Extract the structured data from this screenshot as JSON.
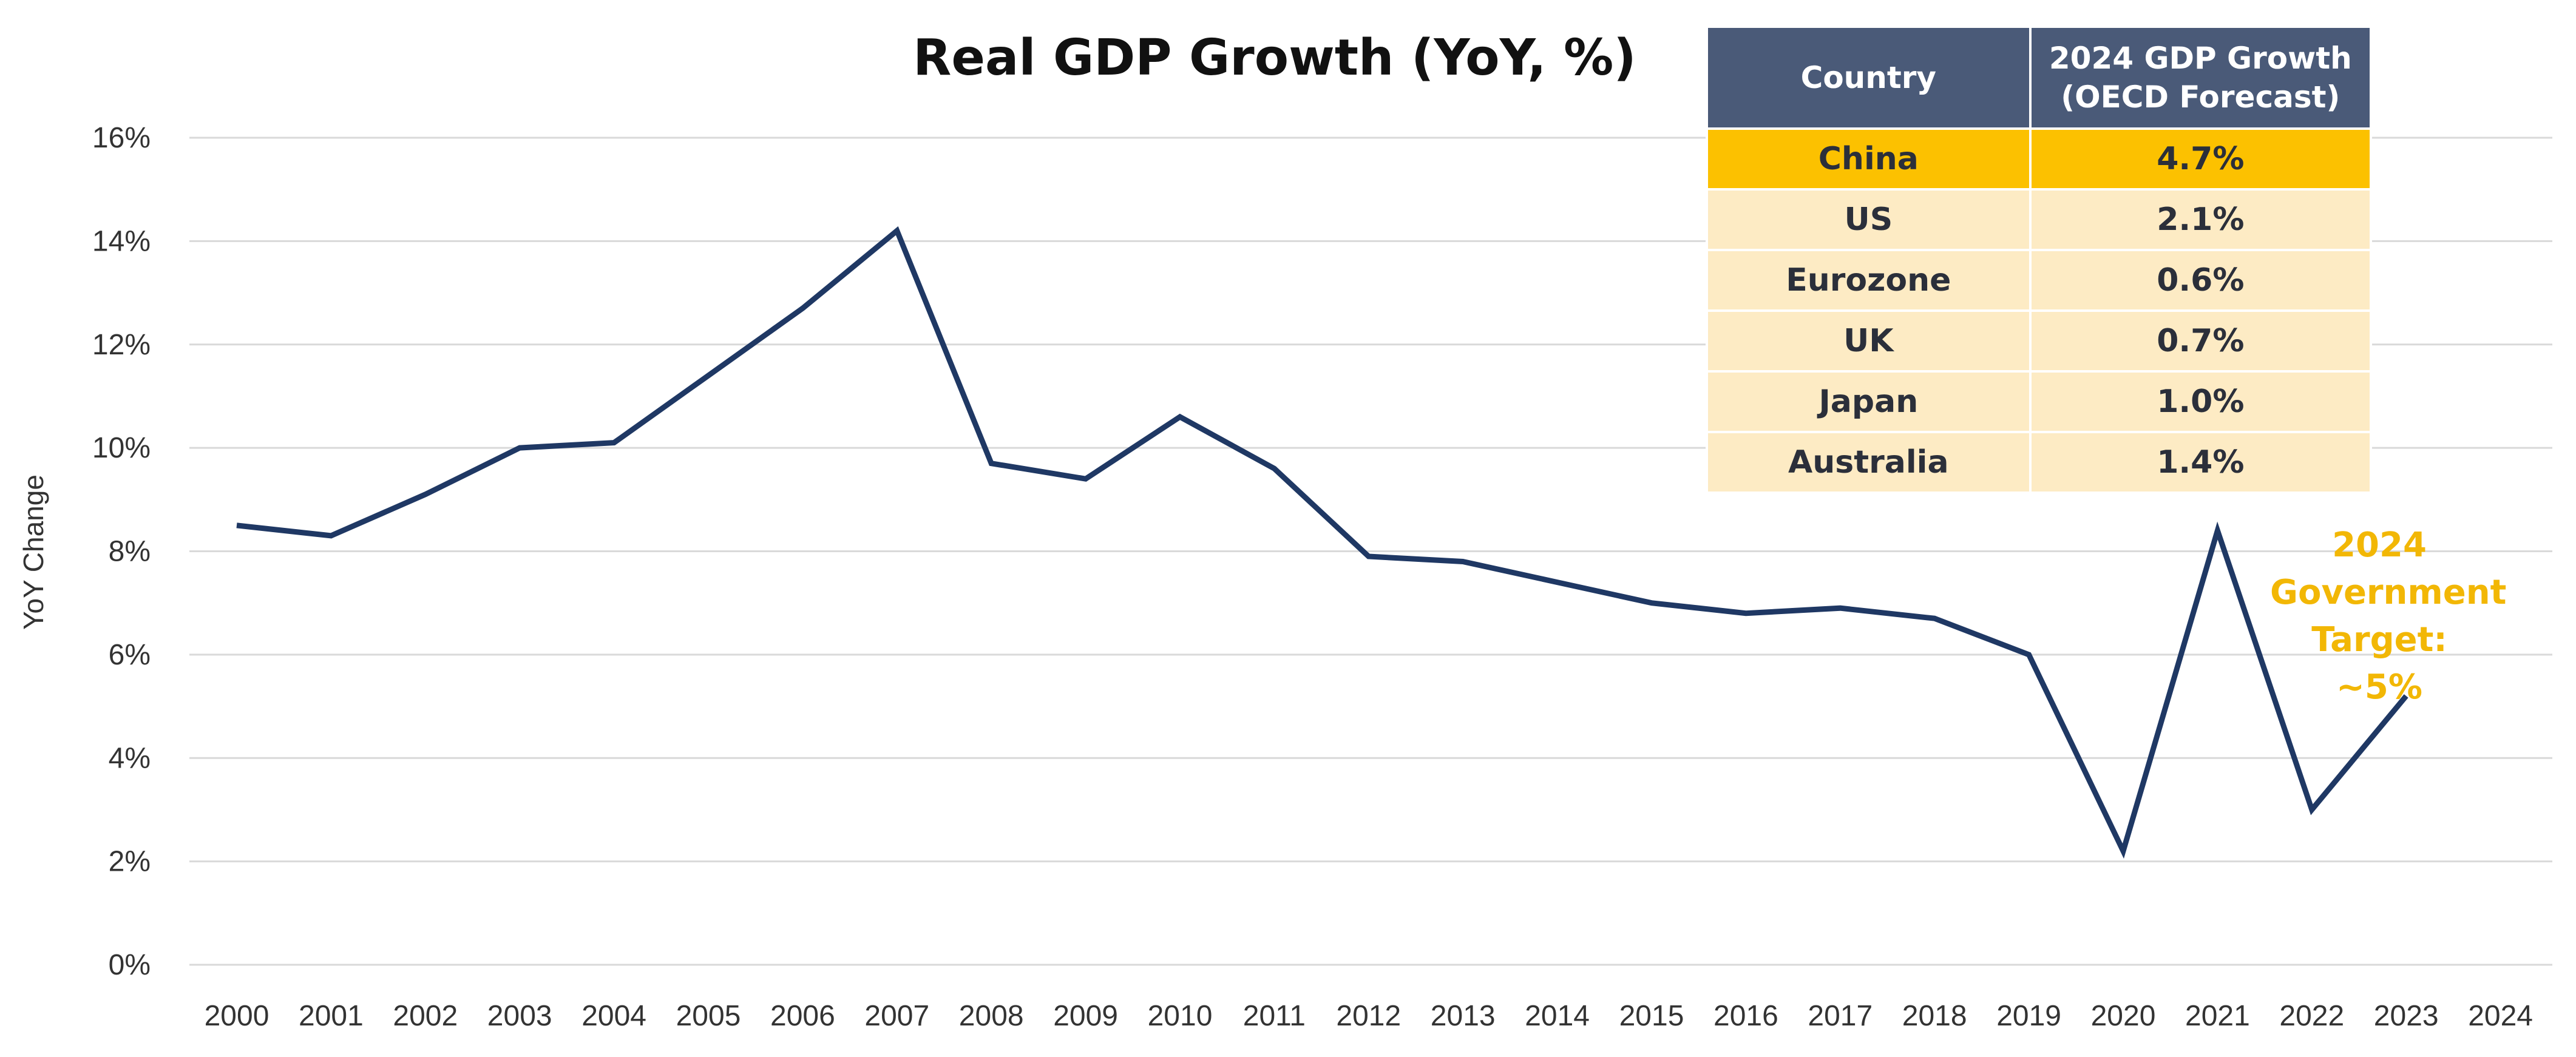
{
  "chart_data": {
    "type": "line",
    "title": "Real GDP Growth (YoY, %)",
    "xlabel": "",
    "ylabel": "YoY Change",
    "ylim": [
      0,
      16
    ],
    "yticks": [
      0,
      2,
      4,
      6,
      8,
      10,
      12,
      14,
      16
    ],
    "ytick_labels": [
      "0%",
      "2%",
      "4%",
      "6%",
      "8%",
      "10%",
      "12%",
      "14%",
      "16%"
    ],
    "categories": [
      "2000",
      "2001",
      "2002",
      "2003",
      "2004",
      "2005",
      "2006",
      "2007",
      "2008",
      "2009",
      "2010",
      "2011",
      "2012",
      "2013",
      "2014",
      "2015",
      "2016",
      "2017",
      "2018",
      "2019",
      "2020",
      "2021",
      "2022",
      "2023",
      "2024"
    ],
    "series": [
      {
        "values": [
          8.5,
          8.3,
          9.1,
          10.0,
          10.1,
          11.4,
          12.7,
          14.2,
          9.7,
          9.4,
          10.6,
          9.6,
          7.9,
          7.8,
          7.4,
          7.0,
          6.8,
          6.9,
          6.7,
          6.0,
          2.2,
          8.4,
          3.0,
          5.2,
          null
        ],
        "color": "#1f3864"
      }
    ],
    "grid": true,
    "annotation": {
      "lines": [
        "2024",
        "Government",
        "Target: ~5%"
      ],
      "color": "#f2b705"
    },
    "table": {
      "headers": [
        "Country",
        "2024 GDP Growth (OECD Forecast)"
      ],
      "rows": [
        {
          "country": "China",
          "value": "4.7%",
          "highlight": true
        },
        {
          "country": "US",
          "value": "2.1%",
          "highlight": false
        },
        {
          "country": "Eurozone",
          "value": "0.6%",
          "highlight": false
        },
        {
          "country": "UK",
          "value": "0.7%",
          "highlight": false
        },
        {
          "country": "Japan",
          "value": "1.0%",
          "highlight": false
        },
        {
          "country": "Australia",
          "value": "1.4%",
          "highlight": false
        }
      ],
      "header_color": "#4a5a78",
      "highlight_color": "#fcc100",
      "row_color": "#fdebc4"
    }
  }
}
